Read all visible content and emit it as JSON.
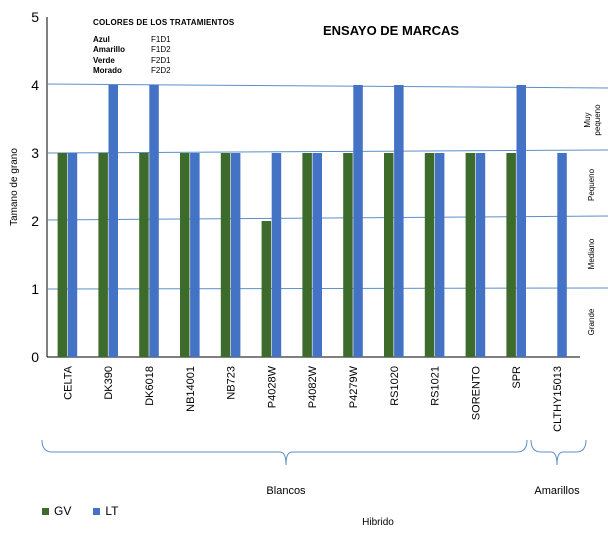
{
  "chart_data": {
    "type": "bar",
    "title": "ENSAYO DE MARCAS",
    "xlabel": "Hibrido",
    "ylabel": "Tamano de grano",
    "ylim": [
      0,
      5
    ],
    "yticks": [
      "0",
      "1",
      "2",
      "3",
      "4",
      "5"
    ],
    "categories": [
      "CELTA",
      "DK390",
      "DK6018",
      "NB14001",
      "NB723",
      "P4028W",
      "P4082W",
      "P4279W",
      "RS1020",
      "RS1021",
      "SORENTO",
      "SPR",
      "CLTHY15013"
    ],
    "series": [
      {
        "name": "GV",
        "color": "#3d6b2c",
        "values": [
          3,
          3,
          3,
          3,
          3,
          2,
          3,
          3,
          3,
          3,
          3,
          3,
          null
        ]
      },
      {
        "name": "LT",
        "color": "#4472c4",
        "values": [
          3,
          4,
          4,
          3,
          3,
          3,
          3,
          4,
          4,
          3,
          3,
          4,
          3
        ]
      }
    ],
    "groups": [
      {
        "label": "Blancos",
        "from": "CELTA",
        "to": "SPR"
      },
      {
        "label": "Amarillos",
        "from": "CLTHY15013",
        "to": "CLTHY15013"
      }
    ],
    "size_labels": [
      "Muy pequeno",
      "Pequeno",
      "Mediano",
      "Grande"
    ],
    "treatments": {
      "header": "COLORES DE LOS TRATAMIENTOS",
      "items": [
        {
          "color": "Azul",
          "code": "F1D1"
        },
        {
          "color": "Amarillo",
          "code": "F1D2"
        },
        {
          "color": "Verde",
          "code": "F2D1"
        },
        {
          "color": "Morado",
          "code": "F2D2"
        }
      ]
    },
    "legend_position": "bottom-left",
    "grid": false
  }
}
